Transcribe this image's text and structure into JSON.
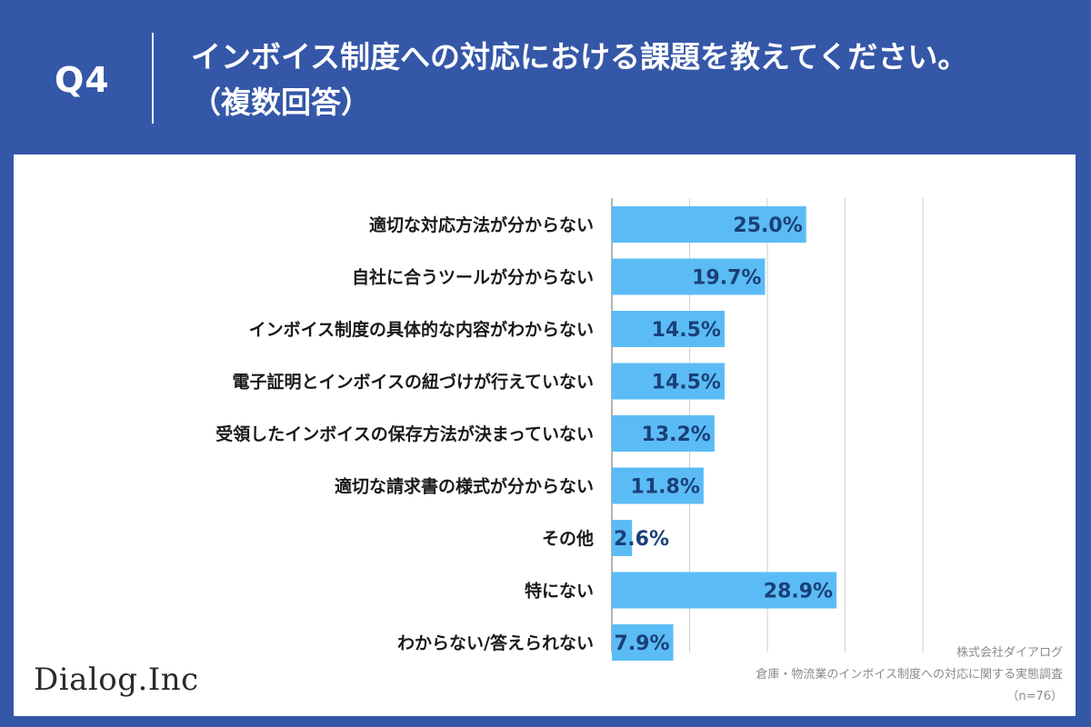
{
  "header": {
    "question_label": "Q4",
    "title_line1": "インボイス制度への対応における課題を教えてください。",
    "title_line2": "（複数回答）"
  },
  "colors": {
    "background": "#3557a8",
    "bar": "#5bbcf5",
    "value_text": "#1b3f78",
    "grid": "#cfcfcf"
  },
  "chart_data": {
    "type": "bar",
    "orientation": "horizontal",
    "categories": [
      "適切な対応方法が分からない",
      "自社に合うツールが分からない",
      "インボイス制度の具体的な内容がわからない",
      "電子証明とインボイスの紐づけが行えていない",
      "受領したインボイスの保存方法が決まっていない",
      "適切な請求書の様式が分からない",
      "その他",
      "特にない",
      "わからない/答えられない"
    ],
    "values": [
      25.0,
      19.7,
      14.5,
      14.5,
      13.2,
      11.8,
      2.6,
      28.9,
      7.9
    ],
    "value_labels": [
      "25.0%",
      "19.7%",
      "14.5%",
      "14.5%",
      "13.2%",
      "11.8%",
      "2.6%",
      "28.9%",
      "7.9%"
    ],
    "xlim": [
      0,
      40
    ],
    "grid": true,
    "gridlines": [
      0,
      10,
      20,
      30,
      40
    ]
  },
  "footer": {
    "logo": "Dialog.Inc",
    "source_company": "株式会社ダイアログ",
    "source_survey": "倉庫・物流業のインボイス制度への対応に関する実態調査",
    "sample": "（n=76）"
  }
}
